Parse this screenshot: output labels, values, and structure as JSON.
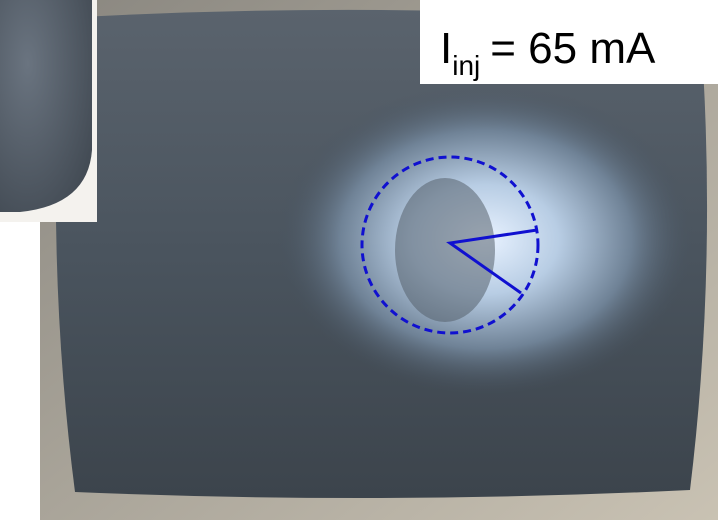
{
  "label": {
    "symbol": "I",
    "subscript": "inj",
    "text": "= 65 mA"
  }
}
